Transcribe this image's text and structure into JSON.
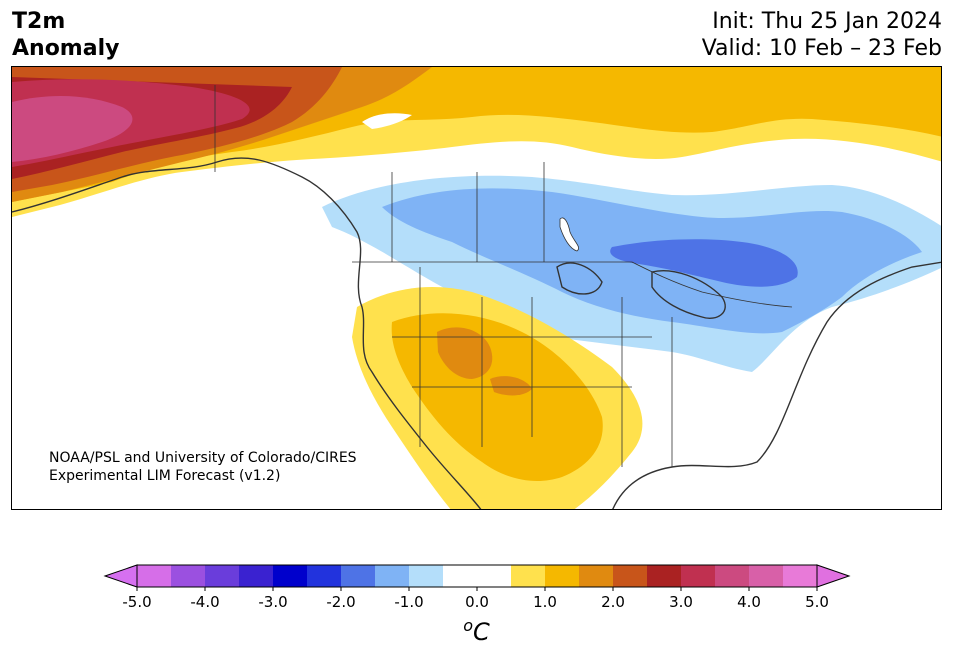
{
  "header": {
    "title_line1": "T2m",
    "title_line2": "Anomaly",
    "init": "Init: Thu 25 Jan 2024",
    "valid": "Valid: 10 Feb – 23 Feb"
  },
  "credit": {
    "line1": "NOAA/PSL and University of Colorado/CIRES",
    "line2": "Experimental LIM Forecast (v1.2)"
  },
  "colorbar": {
    "unit_base": "C",
    "unit_sup": "o",
    "tick_labels": [
      "-5.0",
      "-4.0",
      "-3.0",
      "-2.0",
      "-1.0",
      "0.0",
      "1.0",
      "2.0",
      "3.0",
      "4.0",
      "5.0"
    ],
    "colors": [
      "#d66ee8",
      "#9b50e0",
      "#6a3ddb",
      "#3a22d0",
      "#0000cc",
      "#2233dd",
      "#4e73e6",
      "#7fb3f5",
      "#b4defa",
      "#ffffff",
      "#ffffff",
      "#ffe14d",
      "#f5b800",
      "#e08a10",
      "#c8551a",
      "#aa2222",
      "#c03050",
      "#cc4a80",
      "#d860a8",
      "#e87ad8"
    ],
    "under_color": "#d670f0",
    "over_color": "#e070e0"
  },
  "map_colors": {
    "land_line": "#333333",
    "water": "#ffffff"
  }
}
